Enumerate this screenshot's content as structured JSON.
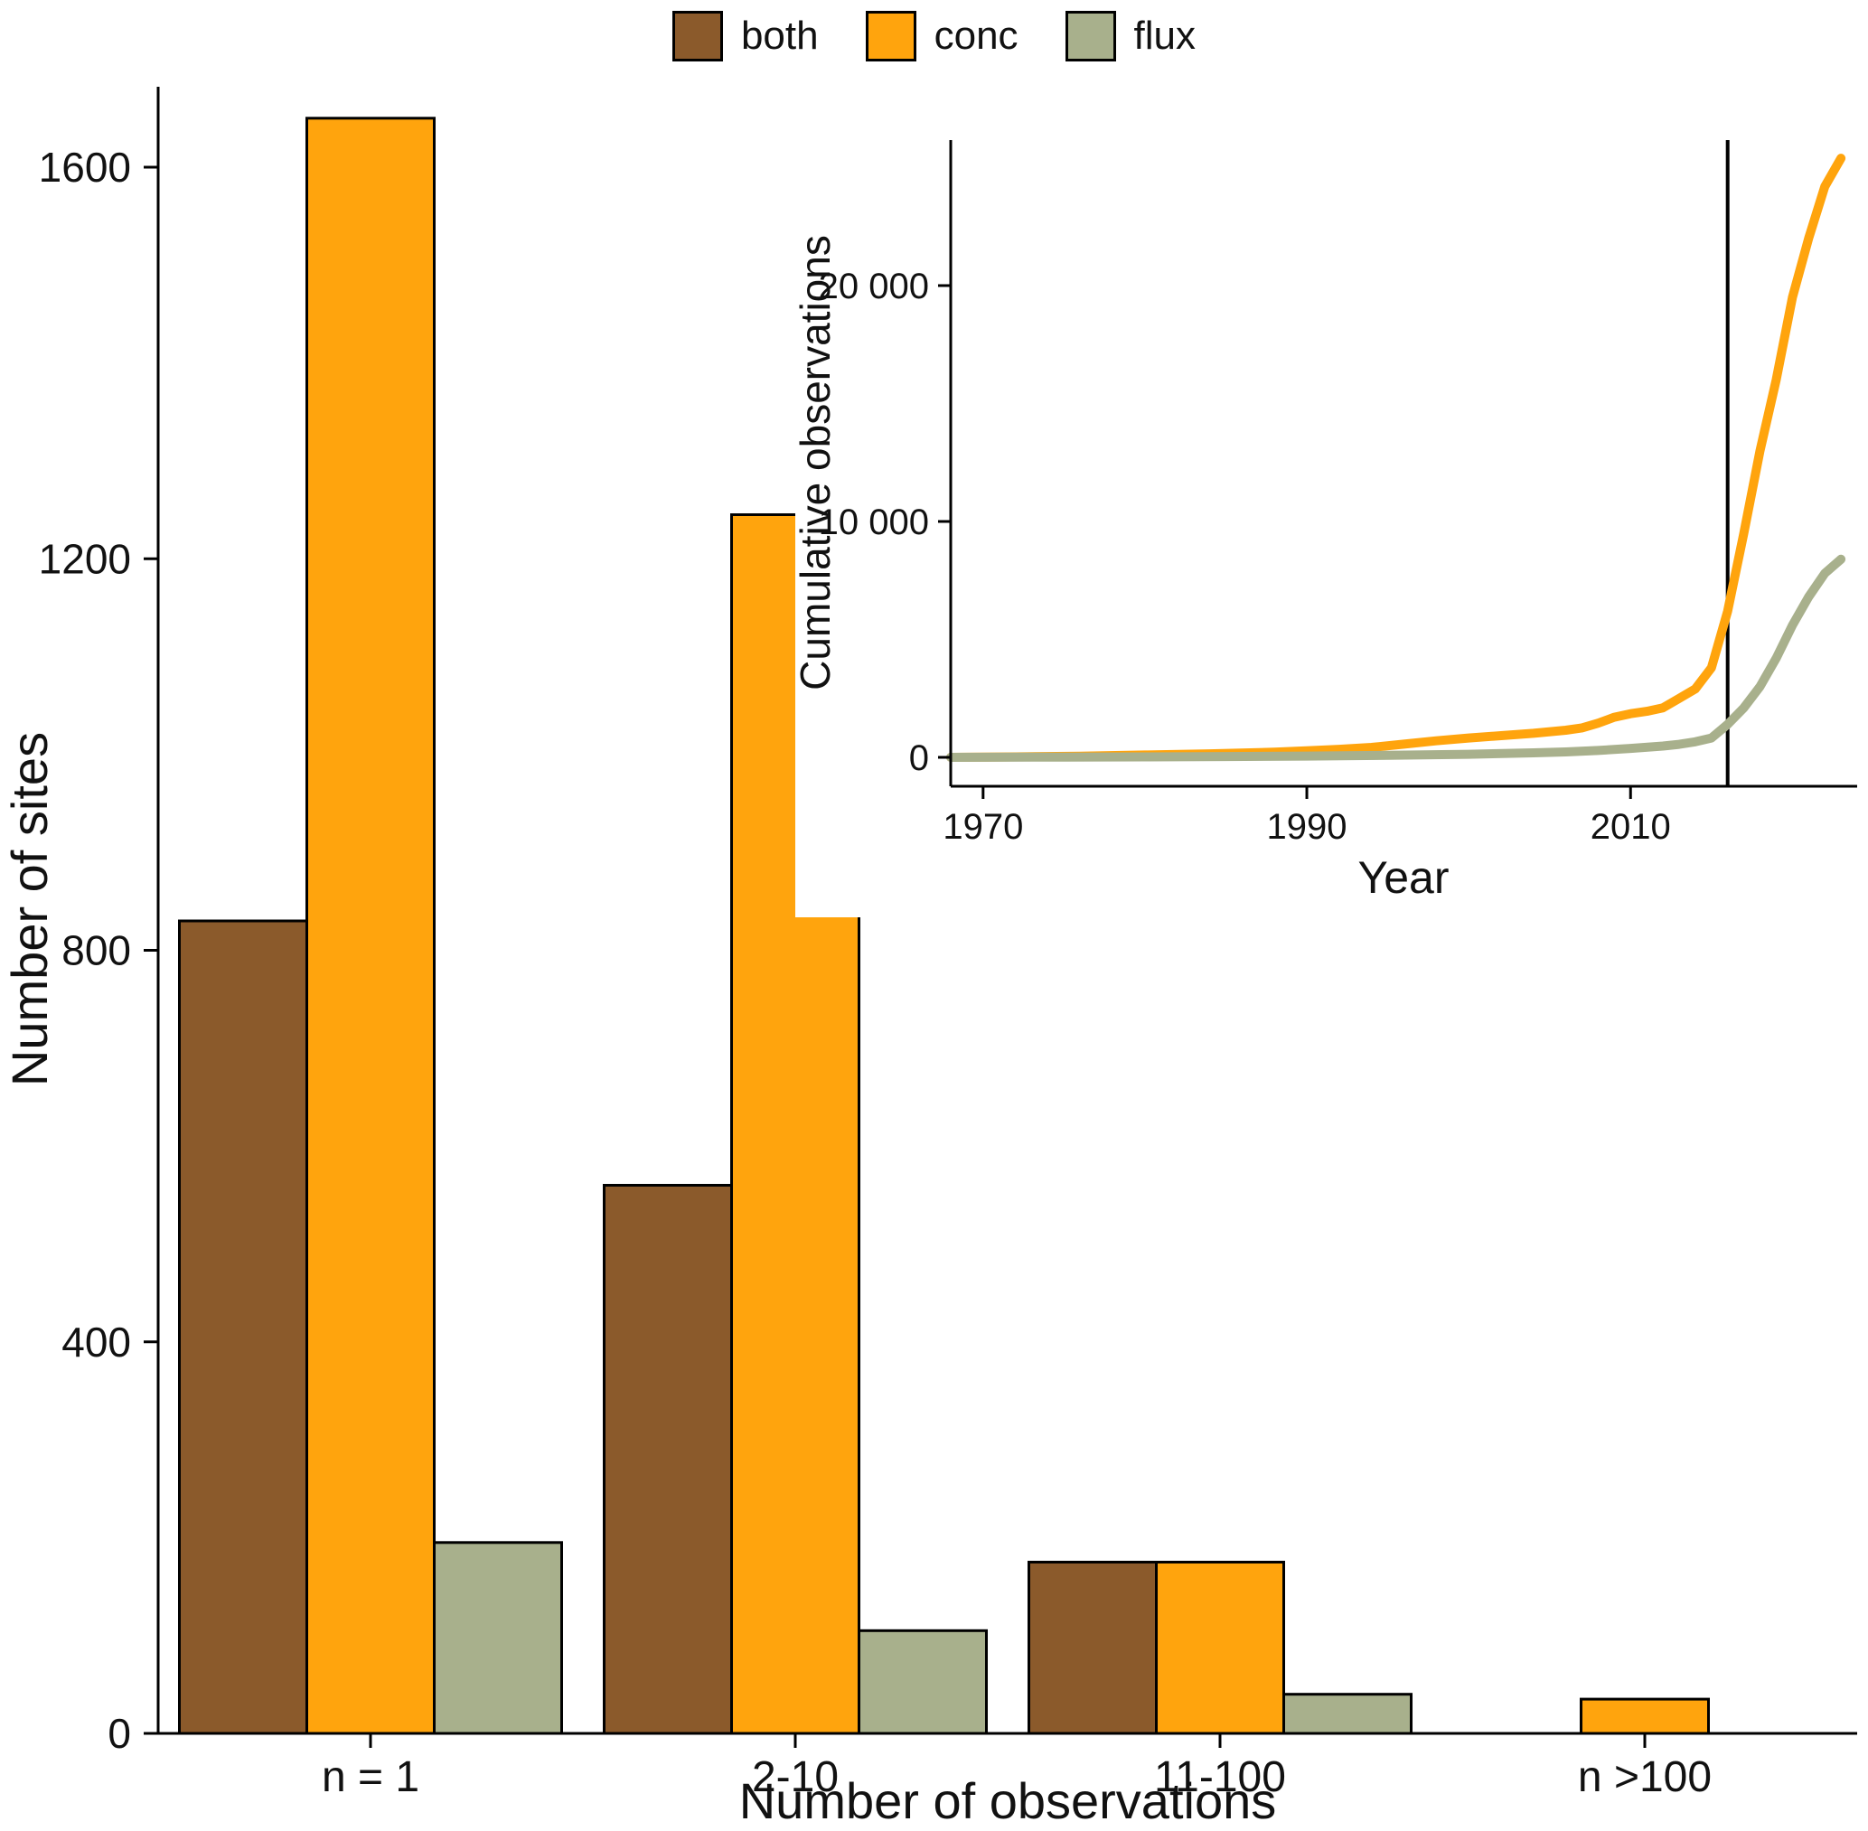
{
  "figure": {
    "background": "#ffffff",
    "axis_color": "#000000",
    "text_color": "#111111"
  },
  "chart_data": [
    {
      "type": "bar",
      "title": "",
      "xlabel": "Number of observations",
      "ylabel": "Number of sites",
      "categories": [
        "n = 1",
        "2-10",
        "11-100",
        "n >100"
      ],
      "series": [
        {
          "name": "both",
          "color": "#8B5A2B",
          "values": [
            830,
            560,
            175,
            0
          ]
        },
        {
          "name": "conc",
          "color": "#FFA40D",
          "values": [
            1650,
            1245,
            175,
            35
          ]
        },
        {
          "name": "flux",
          "color": "#A8B08C",
          "values": [
            195,
            105,
            40,
            0
          ]
        }
      ],
      "y_ticks": [
        0,
        400,
        800,
        1200,
        1600
      ],
      "y_tick_labels": [
        "0",
        "400",
        "800",
        "1200",
        "1600"
      ],
      "ylim": [
        0,
        1700
      ],
      "grid": false,
      "legend_position": "top",
      "bar_border_color": "#000000"
    },
    {
      "type": "line",
      "title": "",
      "xlabel": "Year",
      "ylabel": "Cumulative observations",
      "x_ticks": [
        1970,
        1990,
        2010
      ],
      "x_tick_labels": [
        "1970",
        "1990",
        "2010"
      ],
      "y_ticks": [
        0,
        10000,
        20000
      ],
      "y_tick_labels": [
        "0",
        "10 000",
        "20 000"
      ],
      "xlim": [
        1968,
        2024
      ],
      "ylim": [
        0,
        25500
      ],
      "grid": false,
      "vline_x": 2016,
      "series": [
        {
          "name": "conc",
          "color": "#FFA40D",
          "points": [
            [
              1968,
              0
            ],
            [
              1972,
              20
            ],
            [
              1976,
              50
            ],
            [
              1980,
              100
            ],
            [
              1984,
              150
            ],
            [
              1988,
              220
            ],
            [
              1990,
              280
            ],
            [
              1992,
              340
            ],
            [
              1994,
              420
            ],
            [
              1996,
              560
            ],
            [
              1998,
              700
            ],
            [
              2000,
              820
            ],
            [
              2002,
              920
            ],
            [
              2004,
              1020
            ],
            [
              2006,
              1150
            ],
            [
              2007,
              1250
            ],
            [
              2008,
              1450
            ],
            [
              2009,
              1700
            ],
            [
              2010,
              1850
            ],
            [
              2011,
              1950
            ],
            [
              2012,
              2100
            ],
            [
              2013,
              2500
            ],
            [
              2014,
              2900
            ],
            [
              2015,
              3800
            ],
            [
              2016,
              6200
            ],
            [
              2017,
              9500
            ],
            [
              2018,
              13000
            ],
            [
              2019,
              16000
            ],
            [
              2020,
              19500
            ],
            [
              2021,
              22000
            ],
            [
              2022,
              24200
            ],
            [
              2023,
              25400
            ]
          ]
        },
        {
          "name": "flux",
          "color": "#A8B08C",
          "points": [
            [
              1968,
              0
            ],
            [
              1975,
              10
            ],
            [
              1980,
              20
            ],
            [
              1985,
              35
            ],
            [
              1990,
              55
            ],
            [
              1995,
              85
            ],
            [
              2000,
              130
            ],
            [
              2004,
              190
            ],
            [
              2006,
              230
            ],
            [
              2008,
              290
            ],
            [
              2010,
              380
            ],
            [
              2012,
              480
            ],
            [
              2013,
              550
            ],
            [
              2014,
              660
            ],
            [
              2015,
              820
            ],
            [
              2016,
              1400
            ],
            [
              2017,
              2100
            ],
            [
              2018,
              3000
            ],
            [
              2019,
              4200
            ],
            [
              2020,
              5600
            ],
            [
              2021,
              6800
            ],
            [
              2022,
              7800
            ],
            [
              2023,
              8400
            ]
          ]
        }
      ]
    }
  ]
}
